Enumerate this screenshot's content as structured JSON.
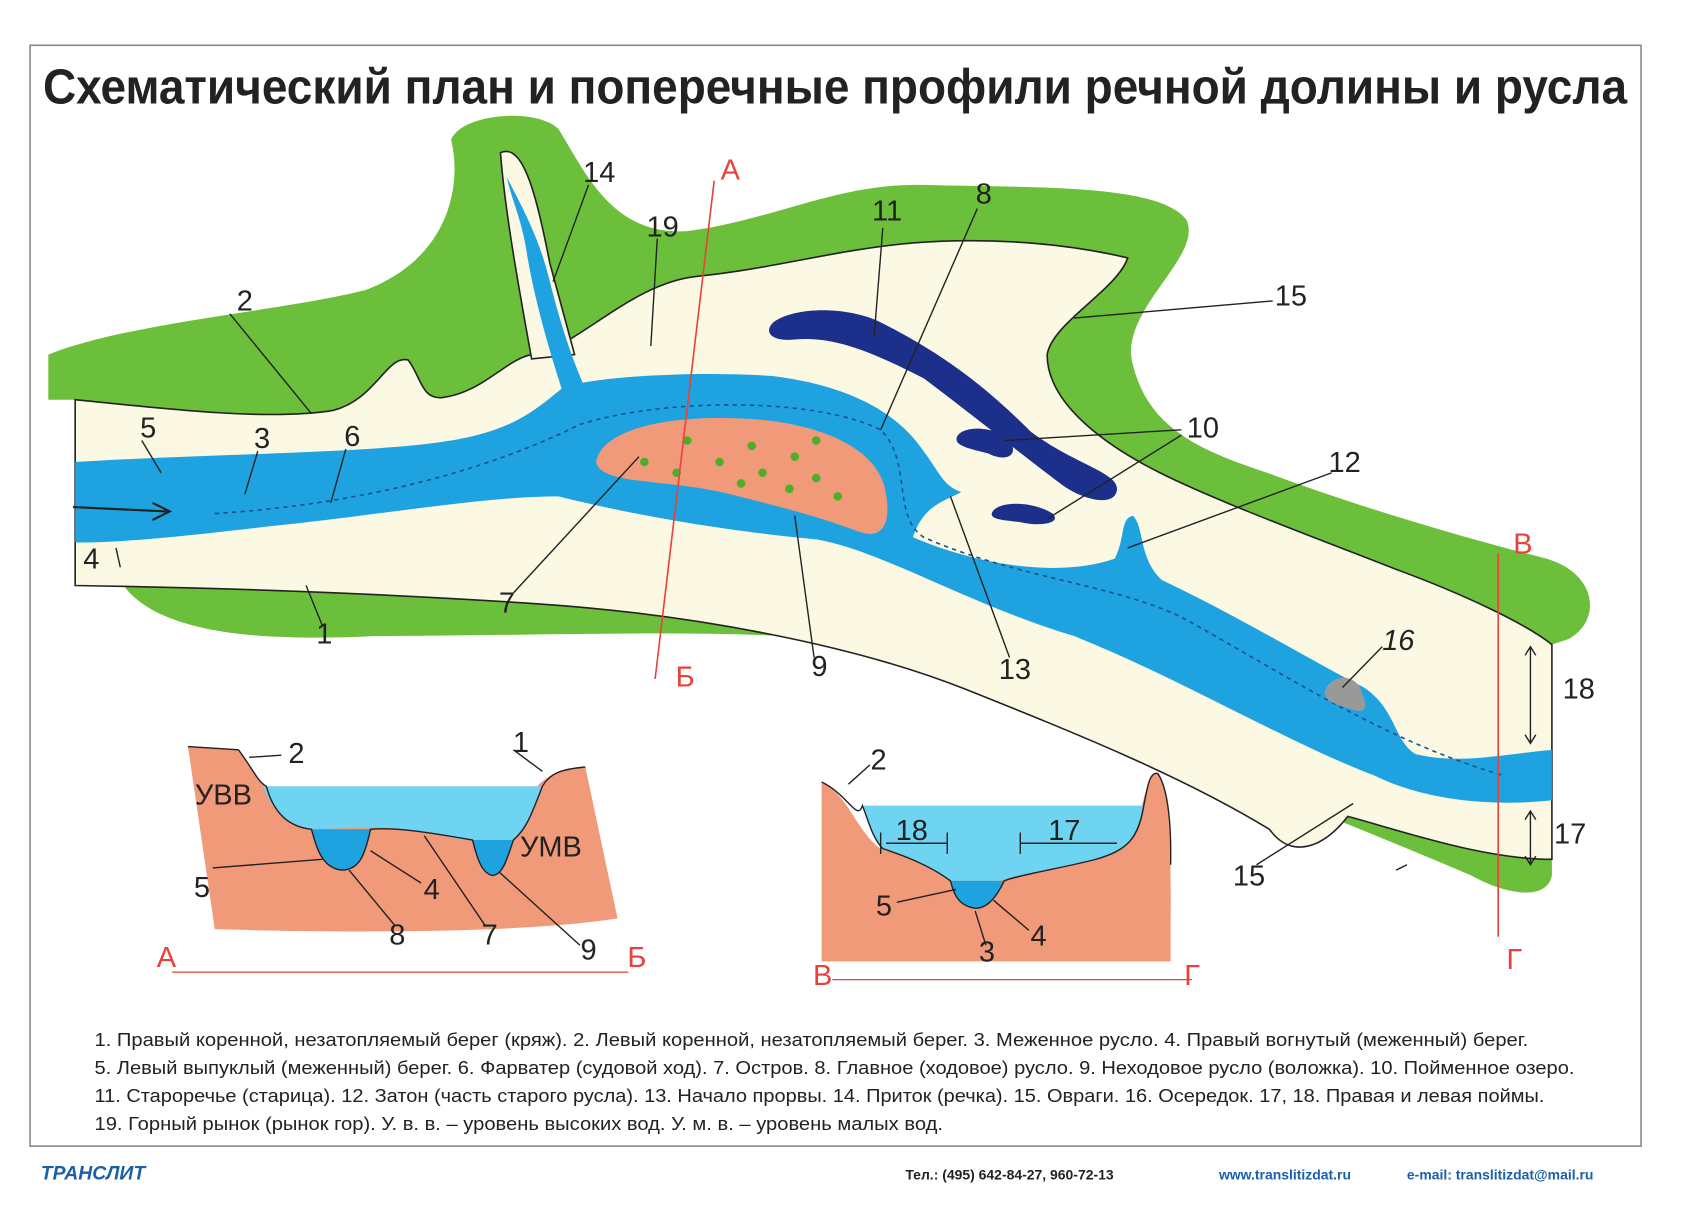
{
  "title": "Схематический план и поперечные профили речной долины и русла",
  "plan": {
    "labels": [
      "14",
      "А",
      "19",
      "11",
      "8",
      "15",
      "2",
      "5",
      "3",
      "6",
      "10",
      "12",
      "4",
      "7",
      "9",
      "13",
      "1",
      "Б",
      "В",
      "16",
      "18",
      "17",
      "15",
      "Г"
    ]
  },
  "profile_ab": {
    "labels": [
      "2",
      "1",
      "УВВ",
      "УМВ",
      "5",
      "4",
      "8",
      "7",
      "9",
      "А",
      "Б"
    ]
  },
  "profile_vg": {
    "labels": [
      "2",
      "18",
      "17",
      "5",
      "4",
      "3",
      "В",
      "Г"
    ]
  },
  "legend": [
    "1. Правый коренной, незатопляемый берег (кряж). 2. Левый коренной, незатопляемый берег. 3. Меженное русло. 4. Правый вогнутый (меженный) берег.",
    "5. Левый выпуклый (меженный) берег. 6. Фарватер (судовой ход). 7. Остров. 8. Главное (ходовое) русло. 9. Неходовое русло (воложка). 10. Пойменное озеро.",
    "11. Староречье (старица). 12. Затон (часть старого русла). 13. Начало прорвы. 14. Приток (речка). 15. Овраги. 16. Осередок. 17, 18. Правая и левая поймы.",
    "19. Горный рынок (рынок гор). У. в. в. – уровень высоких вод. У. м. в. – уровень малых вод."
  ],
  "footer": {
    "publisher": "ТРАНСЛИТ",
    "phone": "Тел.: (495) 642-84-27, 960-72-13",
    "site": "www.translitizdat.ru",
    "email": "e-mail: translitizdat@mail.ru"
  }
}
